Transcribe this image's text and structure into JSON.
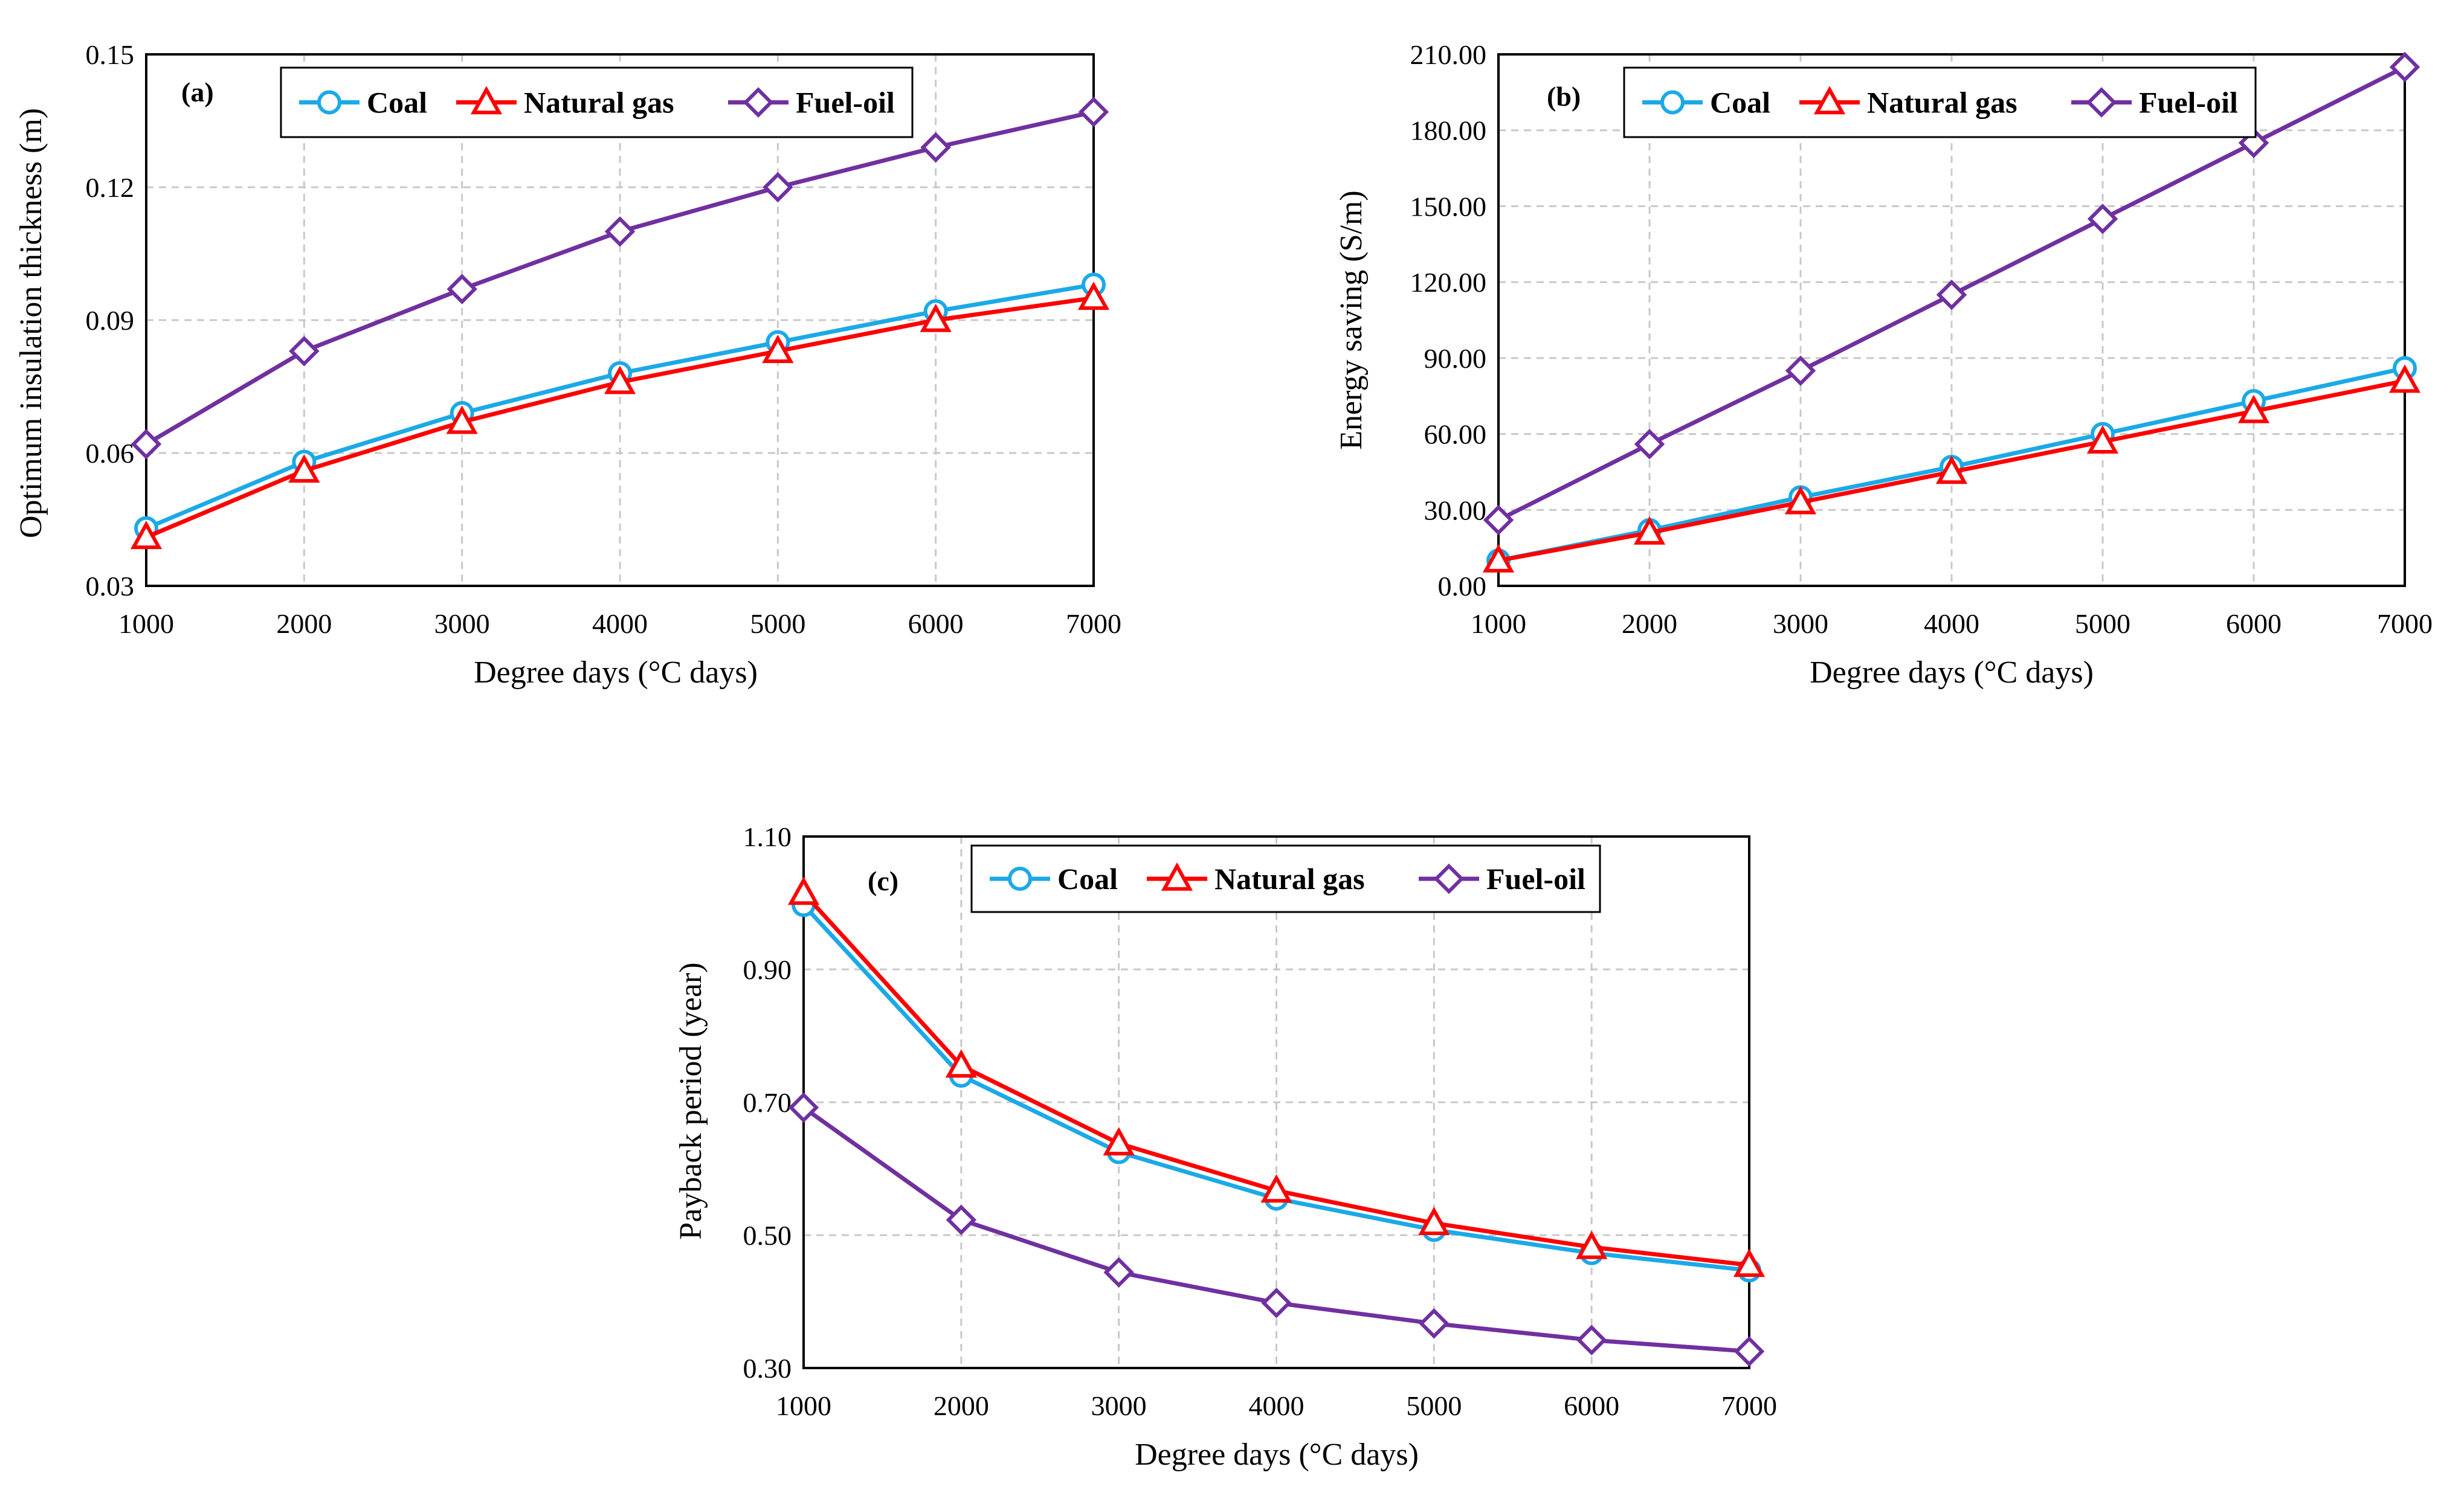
{
  "chart_data": [
    {
      "type": "line",
      "panel_label": "(a)",
      "title": "",
      "xlabel": "Degree days (°C days)",
      "ylabel": "Optimum insulation thickness (m)",
      "x": [
        1000,
        2000,
        3000,
        4000,
        5000,
        6000,
        7000
      ],
      "x_tick_labels": [
        "1000",
        "2000",
        "3000",
        "4000",
        "5000",
        "6000",
        "7000"
      ],
      "xlim": [
        1000,
        7000
      ],
      "ylim": [
        0.03,
        0.15
      ],
      "y_ticks": [
        0.03,
        0.06,
        0.09,
        0.12,
        0.15
      ],
      "y_tick_labels": [
        "0.03",
        "0.06",
        "0.09",
        "0.12",
        "0.15"
      ],
      "grid": true,
      "legend_position": "top",
      "series": [
        {
          "name": "Coal",
          "marker": "circle",
          "color": "#1BA9E8",
          "values": [
            0.043,
            0.058,
            0.069,
            0.078,
            0.085,
            0.092,
            0.098
          ]
        },
        {
          "name": "Natural gas",
          "marker": "triangle",
          "color": "#FF0000",
          "values": [
            0.041,
            0.056,
            0.067,
            0.076,
            0.083,
            0.09,
            0.095
          ]
        },
        {
          "name": "Fuel-oil",
          "marker": "diamond",
          "color": "#7030A0",
          "values": [
            0.062,
            0.083,
            0.097,
            0.11,
            0.12,
            0.129,
            0.137
          ]
        }
      ]
    },
    {
      "type": "line",
      "panel_label": "(b)",
      "title": "",
      "xlabel": "Degree days (°C days)",
      "ylabel": "Energy saving (S/m)",
      "x": [
        1000,
        2000,
        3000,
        4000,
        5000,
        6000,
        7000
      ],
      "x_tick_labels": [
        "1000",
        "2000",
        "3000",
        "4000",
        "5000",
        "6000",
        "7000"
      ],
      "xlim": [
        1000,
        7000
      ],
      "ylim": [
        0,
        210
      ],
      "y_ticks": [
        0,
        30,
        60,
        90,
        120,
        150,
        180,
        210
      ],
      "y_tick_labels": [
        "0.00",
        "30.00",
        "60.00",
        "90.00",
        "120.00",
        "150.00",
        "180.00",
        "210.00"
      ],
      "grid": true,
      "legend_position": "top",
      "series": [
        {
          "name": "Coal",
          "marker": "circle",
          "color": "#1BA9E8",
          "values": [
            10,
            22,
            35,
            47,
            60,
            73,
            86
          ]
        },
        {
          "name": "Natural gas",
          "marker": "triangle",
          "color": "#FF0000",
          "values": [
            10,
            21,
            33,
            45,
            57,
            69,
            81
          ]
        },
        {
          "name": "Fuel-oil",
          "marker": "diamond",
          "color": "#7030A0",
          "values": [
            26,
            56,
            85,
            115,
            145,
            175,
            205
          ]
        }
      ]
    },
    {
      "type": "line",
      "panel_label": "(c)",
      "title": "",
      "xlabel": "Degree days (°C days)",
      "ylabel": "Payback period (year)",
      "x": [
        1000,
        2000,
        3000,
        4000,
        5000,
        6000,
        7000
      ],
      "x_tick_labels": [
        "1000",
        "2000",
        "3000",
        "4000",
        "5000",
        "6000",
        "7000"
      ],
      "xlim": [
        1000,
        7000
      ],
      "ylim": [
        0.3,
        1.1
      ],
      "y_ticks": [
        0.3,
        0.5,
        0.7,
        0.9,
        1.1
      ],
      "y_tick_labels": [
        "0.30",
        "0.50",
        "0.70",
        "0.90",
        "1.10"
      ],
      "grid": true,
      "legend_position": "top",
      "series": [
        {
          "name": "Coal",
          "marker": "circle",
          "color": "#1BA9E8",
          "values": [
            0.997,
            0.74,
            0.625,
            0.555,
            0.508,
            0.473,
            0.447
          ]
        },
        {
          "name": "Natural gas",
          "marker": "triangle",
          "color": "#FF0000",
          "values": [
            1.015,
            0.755,
            0.638,
            0.567,
            0.518,
            0.482,
            0.455
          ]
        },
        {
          "name": "Fuel-oil",
          "marker": "diamond",
          "color": "#7030A0",
          "values": [
            0.692,
            0.523,
            0.444,
            0.398,
            0.367,
            0.342,
            0.325
          ]
        }
      ]
    }
  ]
}
